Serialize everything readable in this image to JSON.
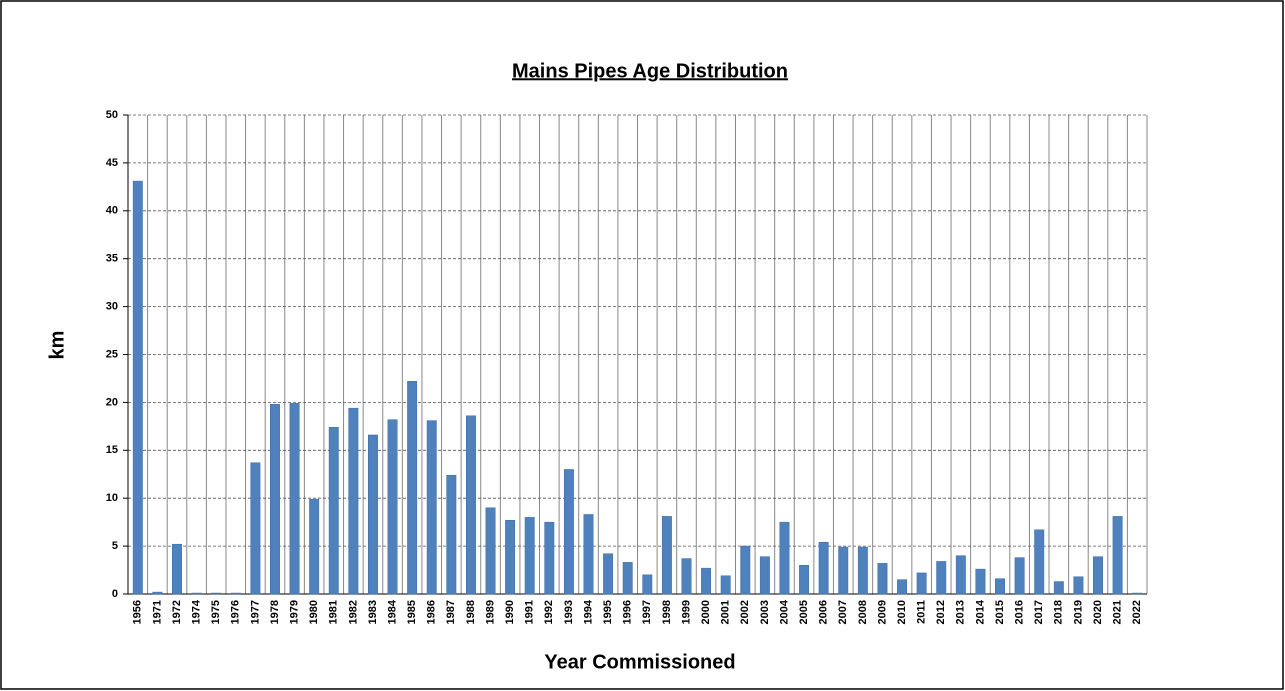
{
  "chart_data": {
    "type": "bar",
    "title": "Mains Pipes Age Distribution",
    "x_label": "Year Commissioned",
    "y_label": "km",
    "categories": [
      "1956",
      "1971",
      "1972",
      "1974",
      "1975",
      "1976",
      "1977",
      "1978",
      "1979",
      "1980",
      "1981",
      "1982",
      "1983",
      "1984",
      "1985",
      "1986",
      "1987",
      "1988",
      "1989",
      "1990",
      "1991",
      "1992",
      "1993",
      "1994",
      "1995",
      "1996",
      "1997",
      "1998",
      "1999",
      "2000",
      "2001",
      "2002",
      "2003",
      "2004",
      "2005",
      "2006",
      "2007",
      "2008",
      "2009",
      "2010",
      "2011",
      "2012",
      "2013",
      "2014",
      "2015",
      "2016",
      "2017",
      "2018",
      "2019",
      "2020",
      "2021",
      "2022"
    ],
    "values": [
      43.1,
      0.2,
      5.2,
      0.1,
      0.1,
      0.1,
      13.7,
      19.8,
      19.9,
      9.9,
      17.4,
      19.4,
      16.6,
      18.2,
      22.2,
      18.1,
      12.4,
      18.6,
      9.0,
      7.7,
      8.0,
      7.5,
      13.0,
      8.3,
      4.2,
      3.3,
      2.0,
      8.1,
      3.7,
      2.7,
      1.9,
      5.0,
      3.9,
      7.5,
      3.0,
      5.4,
      4.9,
      4.9,
      3.2,
      1.5,
      2.2,
      3.4,
      4.0,
      2.6,
      1.6,
      3.8,
      6.7,
      1.3,
      1.8,
      3.9,
      8.1,
      0.1
    ],
    "color": "#4f81bd",
    "ylim": [
      0,
      50
    ],
    "yticks": [
      0,
      5,
      10,
      15,
      20,
      25,
      30,
      35,
      40,
      45,
      50
    ],
    "grid": true
  }
}
